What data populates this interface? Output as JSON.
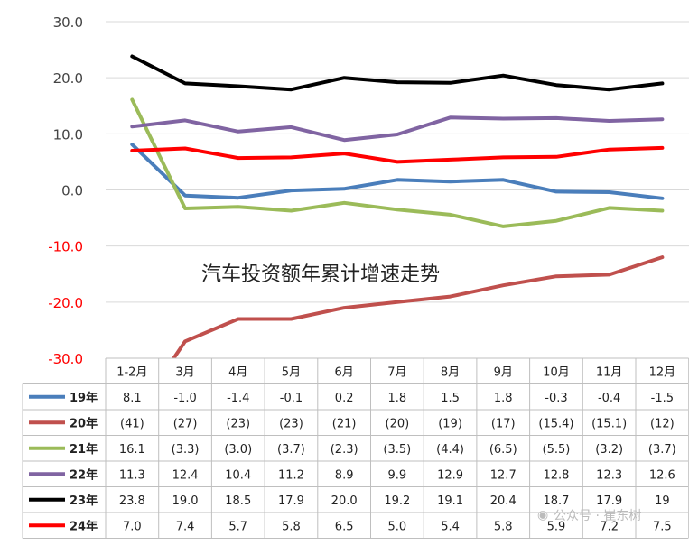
{
  "chart_data": {
    "type": "line",
    "title": "汽车投资额年累计增速走势",
    "xlabel": "",
    "ylabel": "",
    "ylim": [
      -30,
      30
    ],
    "y_ticks": [
      "30.0",
      "20.0",
      "10.0",
      "0.0",
      "-10.0",
      "-20.0",
      "-30.0"
    ],
    "y_tick_values": [
      30,
      20,
      10,
      0,
      -10,
      -20,
      -30
    ],
    "categories": [
      "1-2月",
      "3月",
      "4月",
      "5月",
      "6月",
      "7月",
      "8月",
      "9月",
      "10月",
      "11月",
      "12月"
    ],
    "grid": true,
    "legend": "table-left",
    "series": [
      {
        "name": "19年",
        "color": "#4a7ebb",
        "values": [
          8.1,
          -1.0,
          -1.4,
          -0.1,
          0.2,
          1.8,
          1.5,
          1.8,
          -0.3,
          -0.4,
          -1.5
        ],
        "labels": [
          "8.1",
          "-1.0",
          "-1.4",
          "-0.1",
          "0.2",
          "1.8",
          "1.5",
          "1.8",
          "-0.3",
          "-0.4",
          "-1.5"
        ]
      },
      {
        "name": "20年",
        "color": "#c0504d",
        "values": [
          -41,
          -27,
          -23,
          -23,
          -21,
          -20,
          -19,
          -17,
          -15.4,
          -15.1,
          -12
        ],
        "labels": [
          "(41)",
          "(27)",
          "(23)",
          "(23)",
          "(21)",
          "(20)",
          "(19)",
          "(17)",
          "(15.4)",
          "(15.1)",
          "(12)"
        ]
      },
      {
        "name": "21年",
        "color": "#9bbb59",
        "values": [
          16.1,
          -3.3,
          -3.0,
          -3.7,
          -2.3,
          -3.5,
          -4.4,
          -6.5,
          -5.5,
          -3.2,
          -3.7
        ],
        "labels": [
          "16.1",
          "(3.3)",
          "(3.0)",
          "(3.7)",
          "(2.3)",
          "(3.5)",
          "(4.4)",
          "(6.5)",
          "(5.5)",
          "(3.2)",
          "(3.7)"
        ]
      },
      {
        "name": "22年",
        "color": "#8064a2",
        "values": [
          11.3,
          12.4,
          10.4,
          11.2,
          8.9,
          9.9,
          12.9,
          12.7,
          12.8,
          12.3,
          12.6
        ],
        "labels": [
          "11.3",
          "12.4",
          "10.4",
          "11.2",
          "8.9",
          "9.9",
          "12.9",
          "12.7",
          "12.8",
          "12.3",
          "12.6"
        ]
      },
      {
        "name": "23年",
        "color": "#000000",
        "values": [
          23.8,
          19.0,
          18.5,
          17.9,
          20.0,
          19.2,
          19.1,
          20.4,
          18.7,
          17.9,
          19
        ],
        "labels": [
          "23.8",
          "19.0",
          "18.5",
          "17.9",
          "20.0",
          "19.2",
          "19.1",
          "20.4",
          "18.7",
          "17.9",
          "19"
        ]
      },
      {
        "name": "24年",
        "color": "#ff0000",
        "values": [
          7.0,
          7.4,
          5.7,
          5.8,
          6.5,
          5.0,
          5.4,
          5.8,
          5.9,
          7.2,
          7.5
        ],
        "labels": [
          "7.0",
          "7.4",
          "5.7",
          "5.8",
          "6.5",
          "5.0",
          "5.4",
          "5.8",
          "5.9",
          "7.2",
          "7.5"
        ]
      }
    ]
  },
  "watermark": "公众号 · 崔东树"
}
